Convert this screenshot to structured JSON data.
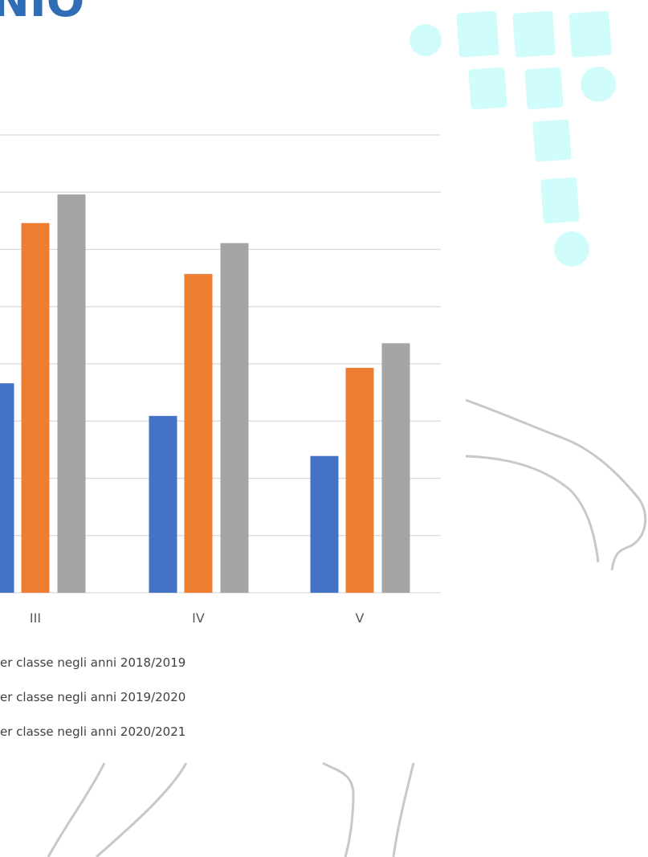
{
  "chart_data": {
    "type": "bar",
    "title": "NIO",
    "categories": [
      "III",
      "IV",
      "V"
    ],
    "series": [
      {
        "name": "er classe negli anni 2018/2019",
        "color": "#4472c4",
        "values": [
          3.66,
          3.09,
          2.39
        ]
      },
      {
        "name": "er classe negli anni 2019/2020",
        "color": "#ed7d31",
        "values": [
          6.46,
          5.57,
          3.93
        ]
      },
      {
        "name": "er classe negli anni 2020/2021",
        "color": "#a5a5a5",
        "values": [
          6.96,
          6.11,
          4.36
        ]
      }
    ],
    "ylim": [
      0,
      8
    ],
    "yticks": [
      0,
      1,
      2,
      3,
      4,
      5,
      6,
      7,
      8
    ],
    "grid": true
  }
}
